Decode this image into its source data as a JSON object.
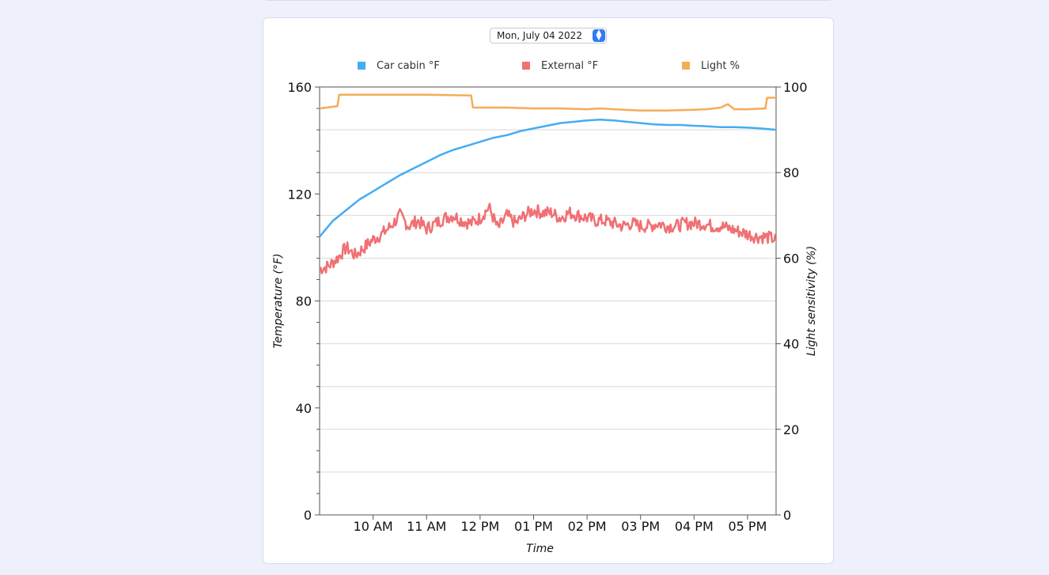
{
  "date_picker": {
    "value": "Mon, July 04 2022"
  },
  "chart_data": {
    "type": "line",
    "xlabel": "Time",
    "x_ticks": [
      "10 AM",
      "11 AM",
      "12 PM",
      "01 PM",
      "02 PM",
      "03 PM",
      "04 PM",
      "05 PM"
    ],
    "x_range": [
      "09:00",
      "17:32"
    ],
    "ylabel_left": "Temperature (°F)",
    "ylim_left": [
      0,
      160
    ],
    "y_ticks_left": [
      0,
      40,
      80,
      120,
      160
    ],
    "ylabel_right": "Light sensitivity (%)",
    "ylim_right": [
      0,
      100
    ],
    "y_ticks_right": [
      0,
      20,
      40,
      60,
      80,
      100
    ],
    "grid": true,
    "legend_position": "top",
    "series": [
      {
        "name": "Car cabin °F",
        "axis": "left",
        "color": "#45acf2",
        "points": [
          [
            "09:00",
            104
          ],
          [
            "09:15",
            110
          ],
          [
            "09:30",
            114
          ],
          [
            "09:45",
            118
          ],
          [
            "10:00",
            121
          ],
          [
            "10:15",
            124
          ],
          [
            "10:30",
            127
          ],
          [
            "10:45",
            129.5
          ],
          [
            "11:00",
            132
          ],
          [
            "11:15",
            134.5
          ],
          [
            "11:30",
            136.5
          ],
          [
            "11:45",
            138
          ],
          [
            "12:00",
            139.5
          ],
          [
            "12:15",
            141
          ],
          [
            "12:30",
            142
          ],
          [
            "12:45",
            143.5
          ],
          [
            "13:00",
            144.5
          ],
          [
            "13:15",
            145.5
          ],
          [
            "13:30",
            146.5
          ],
          [
            "13:45",
            147
          ],
          [
            "14:00",
            147.5
          ],
          [
            "14:15",
            147.8
          ],
          [
            "14:30",
            147.5
          ],
          [
            "14:45",
            147
          ],
          [
            "15:00",
            146.5
          ],
          [
            "15:15",
            146
          ],
          [
            "15:30",
            145.8
          ],
          [
            "15:45",
            145.8
          ],
          [
            "16:00",
            145.5
          ],
          [
            "16:15",
            145.3
          ],
          [
            "16:30",
            145
          ],
          [
            "16:45",
            145
          ],
          [
            "17:00",
            144.8
          ],
          [
            "17:15",
            144.5
          ],
          [
            "17:32",
            144
          ]
        ]
      },
      {
        "name": "External °F",
        "axis": "left",
        "color": "#f07074",
        "points": [
          [
            "09:00",
            92
          ],
          [
            "09:10",
            93
          ],
          [
            "09:20",
            96
          ],
          [
            "09:30",
            100
          ],
          [
            "09:40",
            97
          ],
          [
            "09:50",
            100
          ],
          [
            "10:00",
            103
          ],
          [
            "10:10",
            105
          ],
          [
            "10:20",
            108
          ],
          [
            "10:30",
            112
          ],
          [
            "10:40",
            108
          ],
          [
            "10:50",
            110
          ],
          [
            "11:00",
            107
          ],
          [
            "11:10",
            109
          ],
          [
            "11:20",
            111
          ],
          [
            "11:30",
            112
          ],
          [
            "11:40",
            110
          ],
          [
            "11:50",
            109
          ],
          [
            "12:00",
            111
          ],
          [
            "12:10",
            115
          ],
          [
            "12:20",
            107
          ],
          [
            "12:30",
            112
          ],
          [
            "12:40",
            109
          ],
          [
            "12:50",
            112
          ],
          [
            "13:00",
            114
          ],
          [
            "13:10",
            113
          ],
          [
            "13:20",
            113
          ],
          [
            "13:30",
            111
          ],
          [
            "13:40",
            113
          ],
          [
            "13:50",
            112
          ],
          [
            "14:00",
            111
          ],
          [
            "14:10",
            110
          ],
          [
            "14:20",
            110
          ],
          [
            "14:30",
            109
          ],
          [
            "14:40",
            108
          ],
          [
            "14:50",
            109
          ],
          [
            "15:00",
            108
          ],
          [
            "15:10",
            108
          ],
          [
            "15:20",
            109
          ],
          [
            "15:30",
            108
          ],
          [
            "15:40",
            108
          ],
          [
            "15:50",
            109
          ],
          [
            "16:00",
            109
          ],
          [
            "16:10",
            109
          ],
          [
            "16:20",
            108
          ],
          [
            "16:30",
            108
          ],
          [
            "16:40",
            107
          ],
          [
            "16:50",
            106
          ],
          [
            "17:00",
            105
          ],
          [
            "17:10",
            104
          ],
          [
            "17:20",
            104
          ],
          [
            "17:32",
            103
          ]
        ]
      },
      {
        "name": "Light %",
        "axis": "right",
        "color": "#f5ac58",
        "points": [
          [
            "09:00",
            95
          ],
          [
            "09:20",
            95.5
          ],
          [
            "09:22",
            98.2
          ],
          [
            "10:00",
            98.2
          ],
          [
            "11:00",
            98.2
          ],
          [
            "11:50",
            98
          ],
          [
            "11:52",
            95.2
          ],
          [
            "12:30",
            95.2
          ],
          [
            "13:00",
            95
          ],
          [
            "13:30",
            95
          ],
          [
            "14:00",
            94.8
          ],
          [
            "14:15",
            95
          ],
          [
            "14:30",
            94.8
          ],
          [
            "15:00",
            94.5
          ],
          [
            "15:15",
            94.5
          ],
          [
            "15:30",
            94.5
          ],
          [
            "16:00",
            94.7
          ],
          [
            "16:15",
            94.8
          ],
          [
            "16:30",
            95.2
          ],
          [
            "16:38",
            96
          ],
          [
            "16:45",
            94.8
          ],
          [
            "17:00",
            94.8
          ],
          [
            "17:20",
            95
          ],
          [
            "17:22",
            97.5
          ],
          [
            "17:32",
            97.5
          ]
        ]
      }
    ]
  }
}
